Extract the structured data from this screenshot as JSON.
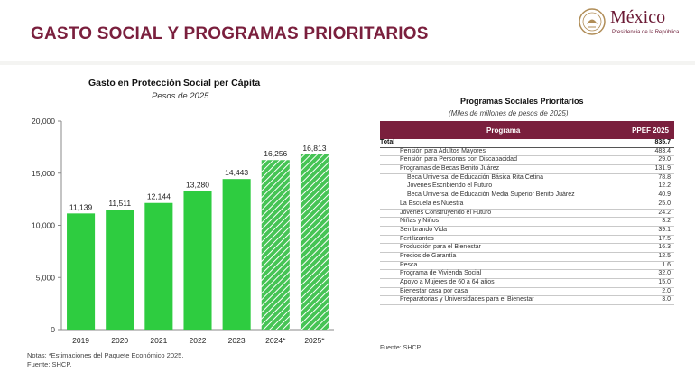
{
  "page_title": "GASTO SOCIAL Y PROGRAMAS PRIORITARIOS",
  "logo": {
    "name": "México",
    "subtitle": "Presidencia de la República"
  },
  "chart_data": {
    "type": "bar",
    "title": "Gasto en Protección Social per Cápita",
    "subtitle": "Pesos de 2025",
    "categories": [
      "2019",
      "2020",
      "2021",
      "2022",
      "2023",
      "2024*",
      "2025*"
    ],
    "values": [
      11139,
      11511,
      12144,
      13280,
      14443,
      16256,
      16813
    ],
    "value_labels": [
      "11,139",
      "11,511",
      "12,144",
      "13,280",
      "14,443",
      "16,256",
      "16,813"
    ],
    "estimated": [
      false,
      false,
      false,
      false,
      false,
      true,
      true
    ],
    "yticks": [
      "0",
      "5,000",
      "10,000",
      "15,000",
      "20,000"
    ],
    "ylim": [
      0,
      20000
    ],
    "colors": {
      "solid": "#2ecc40",
      "hatched": "#8ee39a",
      "hatch_line": "#ffffff",
      "axis": "#888888"
    }
  },
  "notes": {
    "line1": "Notas: *Estimaciones del Paquete Económico 2025.",
    "line2": "Fuente: SHCP."
  },
  "table": {
    "title": "Programas Sociales Prioritarios",
    "subtitle": "(Miles de millones de pesos de 2025)",
    "header_program": "Programa",
    "header_value": "PPEF 2025",
    "total_label": "Total",
    "total_value": "835.7",
    "rows": [
      {
        "name": "Pensión para Adultos Mayores",
        "value": "483.4",
        "indent": 1
      },
      {
        "name": "Pensión para Personas con Discapacidad",
        "value": "29.0",
        "indent": 1
      },
      {
        "name": "Programas de Becas Benito Juárez",
        "value": "131.9",
        "indent": 1
      },
      {
        "name": "Beca Universal de Educación Básica Rita Cetina",
        "value": "78.8",
        "indent": 2
      },
      {
        "name": "Jóvenes Escribiendo el Futuro",
        "value": "12.2",
        "indent": 2
      },
      {
        "name": "Beca Universal de Educación Media Superior Benito Juárez",
        "value": "40.9",
        "indent": 2
      },
      {
        "name": "La Escuela es Nuestra",
        "value": "25.0",
        "indent": 1
      },
      {
        "name": "Jóvenes Construyendo el Futuro",
        "value": "24.2",
        "indent": 1
      },
      {
        "name": "Niñas y Niños",
        "value": "3.2",
        "indent": 1
      },
      {
        "name": "Sembrando Vida",
        "value": "39.1",
        "indent": 1
      },
      {
        "name": "Fertilizantes",
        "value": "17.5",
        "indent": 1
      },
      {
        "name": "Producción para el Bienestar",
        "value": "16.3",
        "indent": 1
      },
      {
        "name": "Precios de Garantía",
        "value": "12.5",
        "indent": 1
      },
      {
        "name": "Pesca",
        "value": "1.6",
        "indent": 1
      },
      {
        "name": "Programa de Vivienda Social",
        "value": "32.0",
        "indent": 1
      },
      {
        "name": "Apoyo a Mujeres de 60 a 64 años",
        "value": "15.0",
        "indent": 1
      },
      {
        "name": "Bienestar casa por casa",
        "value": "2.0",
        "indent": 1
      },
      {
        "name": "Preparatorias y Universidades para el Bienestar",
        "value": "3.0",
        "indent": 1
      }
    ],
    "source": "Fuente: SHCP."
  }
}
